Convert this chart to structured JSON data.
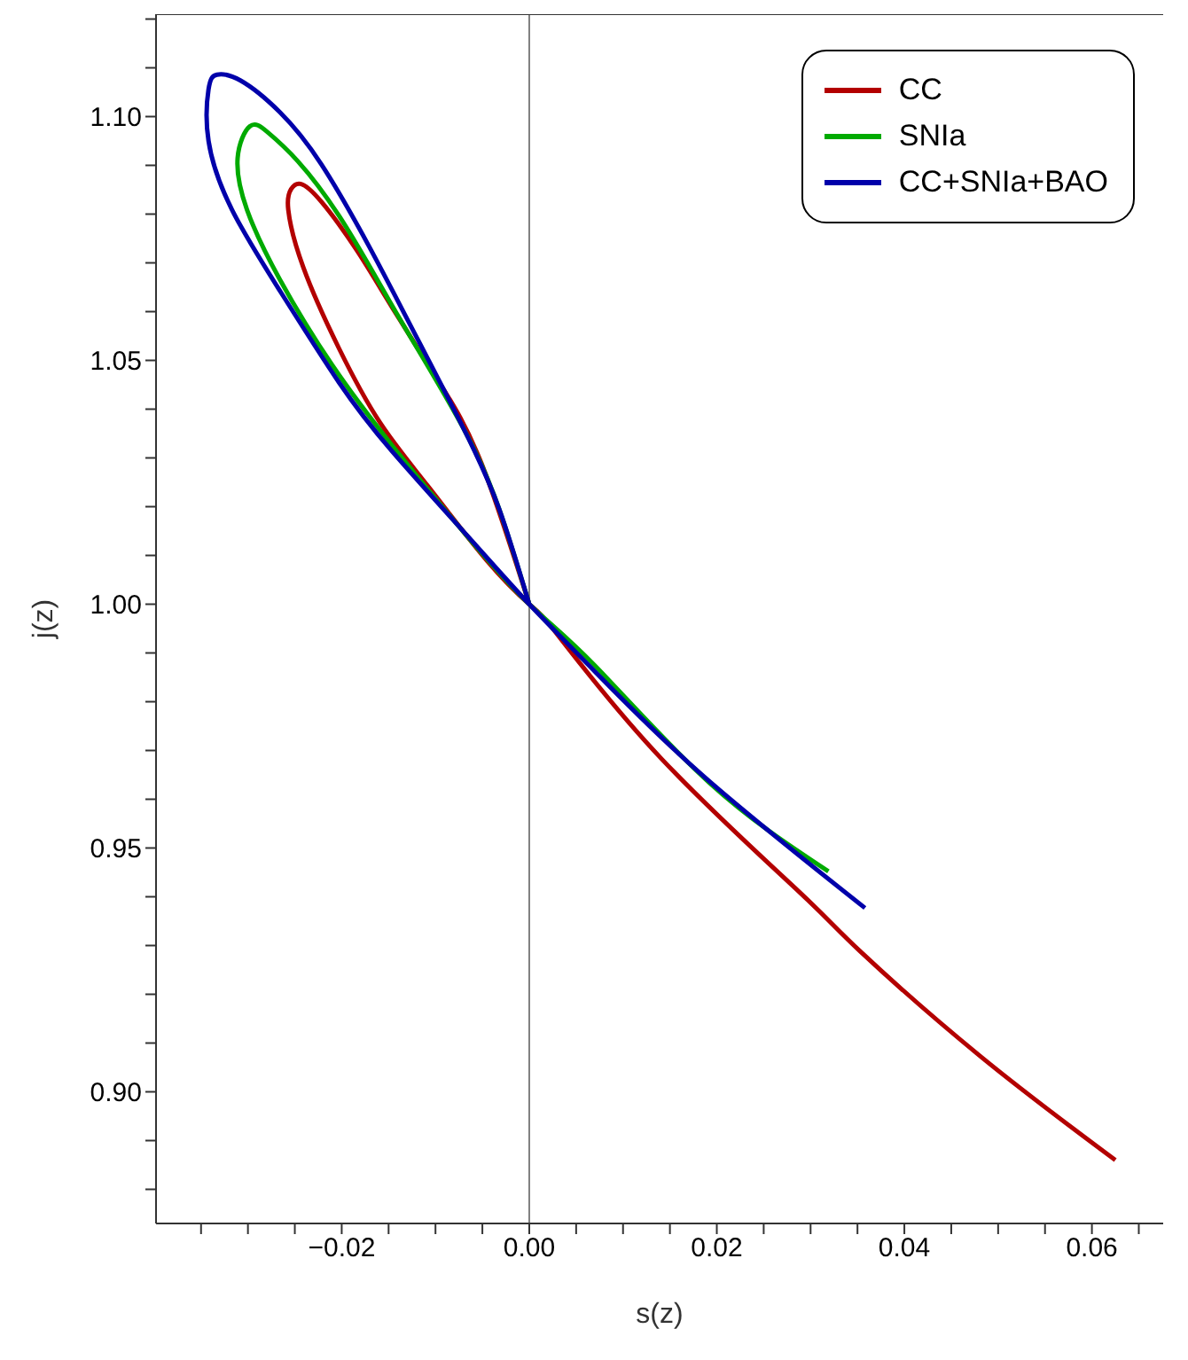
{
  "chart_data": {
    "type": "line",
    "xlabel": "s(z)",
    "ylabel": "j(z)",
    "xlim": [
      -0.0398,
      0.0676
    ],
    "ylim": [
      0.873,
      1.121
    ],
    "xticks": [
      {
        "value": -0.035,
        "label": null
      },
      {
        "value": -0.03,
        "label": null
      },
      {
        "value": -0.025,
        "label": null
      },
      {
        "value": -0.02,
        "label": "−0.02"
      },
      {
        "value": -0.015,
        "label": null
      },
      {
        "value": -0.01,
        "label": null
      },
      {
        "value": -0.005,
        "label": null
      },
      {
        "value": 0,
        "label": "0.00"
      },
      {
        "value": 0.005,
        "label": null
      },
      {
        "value": 0.01,
        "label": null
      },
      {
        "value": 0.015,
        "label": null
      },
      {
        "value": 0.02,
        "label": "0.02"
      },
      {
        "value": 0.025,
        "label": null
      },
      {
        "value": 0.03,
        "label": null
      },
      {
        "value": 0.035,
        "label": null
      },
      {
        "value": 0.04,
        "label": "0.04"
      },
      {
        "value": 0.045,
        "label": null
      },
      {
        "value": 0.05,
        "label": null
      },
      {
        "value": 0.055,
        "label": null
      },
      {
        "value": 0.06,
        "label": "0.06"
      },
      {
        "value": 0.065,
        "label": null
      }
    ],
    "yticks": [
      {
        "value": 0.88,
        "label": null
      },
      {
        "value": 0.89,
        "label": null
      },
      {
        "value": 0.9,
        "label": "0.90"
      },
      {
        "value": 0.91,
        "label": null
      },
      {
        "value": 0.92,
        "label": null
      },
      {
        "value": 0.93,
        "label": null
      },
      {
        "value": 0.94,
        "label": null
      },
      {
        "value": 0.95,
        "label": "0.95"
      },
      {
        "value": 0.96,
        "label": null
      },
      {
        "value": 0.97,
        "label": null
      },
      {
        "value": 0.98,
        "label": null
      },
      {
        "value": 0.99,
        "label": null
      },
      {
        "value": 1,
        "label": "1.00"
      },
      {
        "value": 1.01,
        "label": null
      },
      {
        "value": 1.02,
        "label": null
      },
      {
        "value": 1.03,
        "label": null
      },
      {
        "value": 1.04,
        "label": null
      },
      {
        "value": 1.05,
        "label": "1.05"
      },
      {
        "value": 1.06,
        "label": null
      },
      {
        "value": 1.07,
        "label": null
      },
      {
        "value": 1.08,
        "label": null
      },
      {
        "value": 1.09,
        "label": null
      },
      {
        "value": 1.1,
        "label": "1.10"
      },
      {
        "value": 1.11,
        "label": null
      },
      {
        "value": 1.12,
        "label": null
      }
    ],
    "grid": false,
    "legend": "top right",
    "marker": "none",
    "line_style": "solid",
    "ref_lines": [
      {
        "axis": "x",
        "value": 0,
        "color": "#808080"
      }
    ],
    "series": [
      {
        "name": "CC",
        "color": "#b30000",
        "x": [
          0.0625,
          0.0481,
          0.0353,
          0.0289,
          0.0141,
          0.0032,
          0,
          -0.0045,
          -0.0108,
          -0.0159,
          -0.0203,
          -0.0241,
          -0.0257,
          -0.0254,
          -0.0244,
          -0.0222,
          -0.0184,
          -0.0146,
          -0.0096,
          -0.0051,
          0
        ],
        "values": [
          0.886,
          0.9073,
          0.9288,
          0.9408,
          0.9683,
          0.9933,
          1,
          1.0089,
          1.0242,
          1.0372,
          1.0525,
          1.0691,
          1.0809,
          1.0851,
          1.0862,
          1.0826,
          1.0726,
          1.0608,
          1.0455,
          1.0289,
          1
        ]
      },
      {
        "name": "SNIa",
        "color": "#00aa00",
        "x": [
          0.0319,
          0.0192,
          0.007,
          0,
          -0.007,
          -0.0146,
          -0.021,
          -0.0266,
          -0.0301,
          -0.0311,
          -0.0298,
          -0.0279,
          -0.0247,
          -0.0203,
          -0.0159,
          -0.0127,
          -0.007,
          -0.0032,
          0
        ],
        "values": [
          0.9452,
          0.9634,
          0.9874,
          1,
          1.0148,
          1.0325,
          1.049,
          1.0666,
          1.0809,
          1.0915,
          1.098,
          1.0968,
          1.0909,
          1.0797,
          1.0655,
          1.0549,
          1.036,
          1.0195,
          1
        ]
      },
      {
        "name": "CC+SNIa+BAO",
        "color": "#0000aa",
        "x": [
          0.0358,
          0.0186,
          0.007,
          0,
          -0.0064,
          -0.0146,
          -0.0203,
          -0.0266,
          -0.0317,
          -0.0342,
          -0.0342,
          -0.0333,
          -0.0308,
          -0.0266,
          -0.0222,
          -0.0172,
          -0.0127,
          -0.007,
          -0.0032,
          0
        ],
        "values": [
          0.9377,
          0.9647,
          0.9862,
          1,
          1.0136,
          1.0313,
          1.0455,
          1.0643,
          1.0809,
          1.095,
          1.1056,
          1.1086,
          1.1074,
          1.1009,
          1.0903,
          1.0738,
          1.0573,
          1.036,
          1.0195,
          1
        ]
      }
    ]
  }
}
